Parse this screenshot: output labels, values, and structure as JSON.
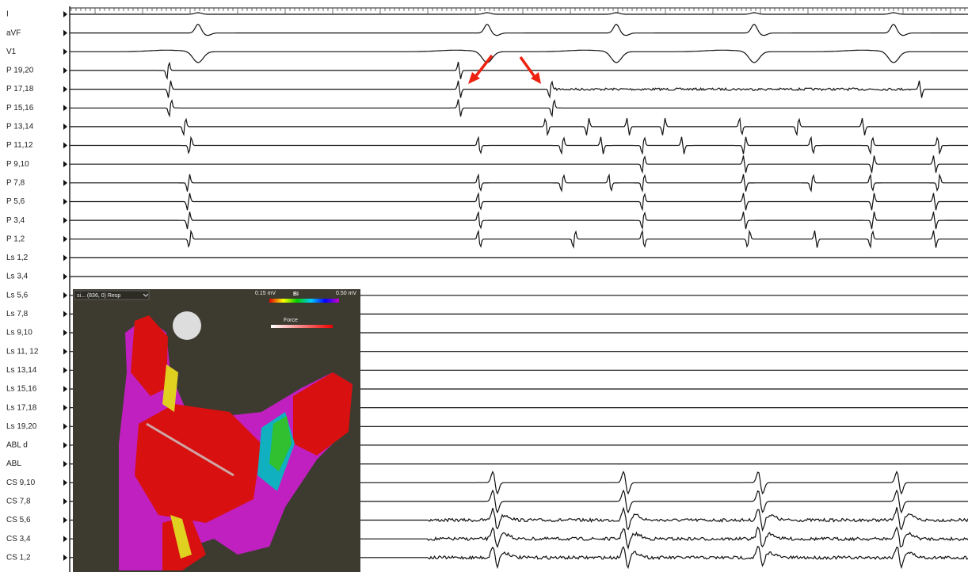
{
  "channels": [
    "I",
    "aVF",
    "V1",
    "P 19,20",
    "P 17,18",
    "P 15,16",
    "P 13,14",
    "P 11,12",
    "P 9,10",
    "P 7,8",
    "P 5,6",
    "P 3,4",
    "P 1,2",
    "Ls 1,2",
    "Ls 3,4",
    "Ls 5,6",
    "Ls 7,8",
    "Ls 9,10",
    "Ls 11, 12",
    "Ls 13,14",
    "Ls 15,16",
    "Ls 17,18",
    "Ls 19,20",
    "ABL d",
    "ABL",
    "CS 9,10",
    "CS 7,8",
    "CS 5,6",
    "CS 3,4",
    "CS 1,2"
  ],
  "map_window": {
    "title": "si... (836, 0) Resp",
    "scale_min": "0.15 mV",
    "scale_label": "Bi",
    "scale_max": "0.50 mV",
    "force_label": "Force"
  }
}
